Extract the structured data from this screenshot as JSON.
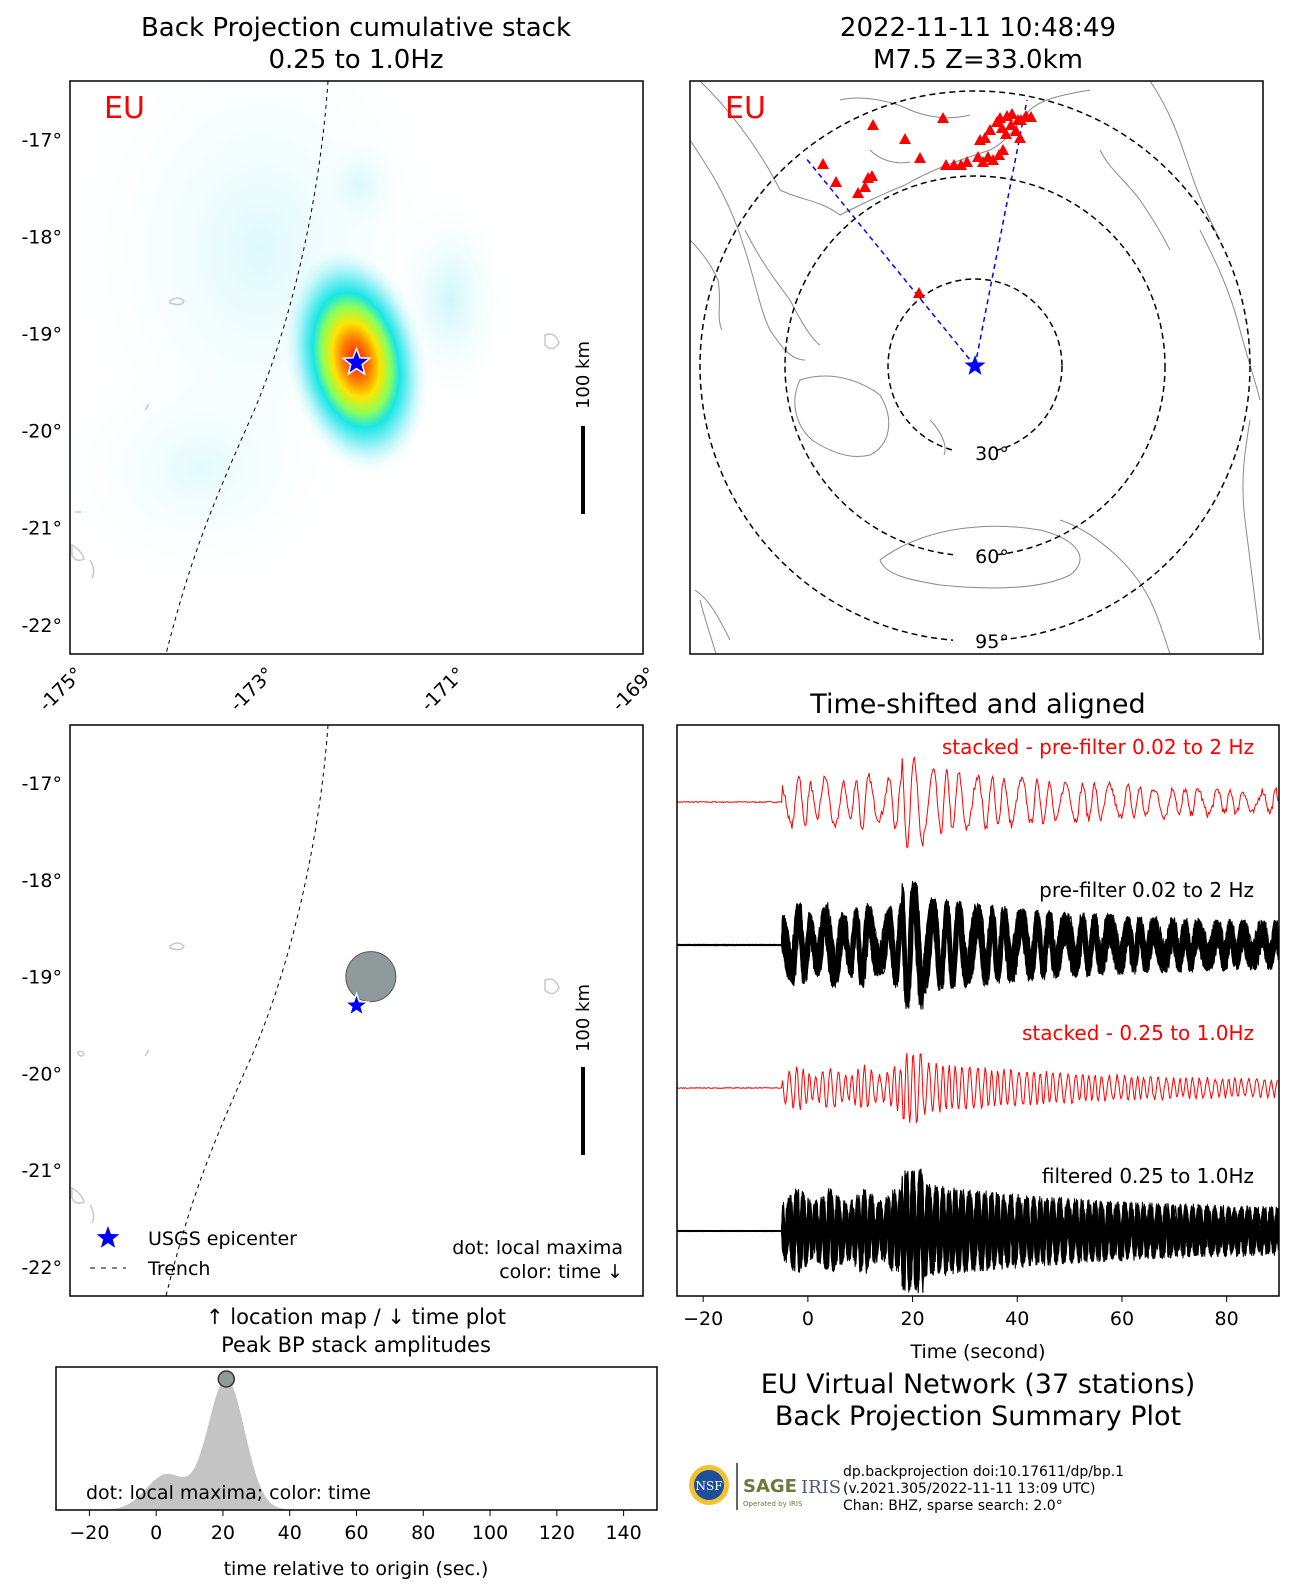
{
  "colors": {
    "stacked": "#ff0000",
    "traces": "#000000",
    "epicenter": "#0000ff",
    "stations": "#ff0000",
    "maxima_dot": "#8f9b9b",
    "peak_fill": "#c4c4c4",
    "label_red": "#ff0000"
  },
  "panels": {
    "bp_map": {
      "title_line1": "Back Projection cumulative stack",
      "title_line2": "0.25 to 1.0Hz",
      "network_tag": "EU",
      "scale_label": "100 km",
      "lat_ticks": [
        "-17°",
        "-18°",
        "-19°",
        "-20°",
        "-21°",
        "-22°"
      ],
      "lon_ticks": [
        "-175°",
        "-173°",
        "-171°",
        "-169°"
      ]
    },
    "station_map": {
      "title_line1": "2022-11-11 10:48:49",
      "title_line2": "M7.5 Z=33.0km",
      "network_tag": "EU",
      "ring_labels": [
        "30°",
        "60°",
        "95°"
      ]
    },
    "location_map": {
      "scale_label": "100 km",
      "lat_ticks": [
        "-17°",
        "-18°",
        "-19°",
        "-20°",
        "-21°",
        "-22°"
      ],
      "legend_epicenter": "USGS epicenter",
      "legend_trench": "Trench",
      "note_line1": "dot: local maxima",
      "note_line2": "color: time ↓",
      "caption_line1": "↑ location map / ↓ time plot",
      "caption_line2": "Peak BP stack amplitudes"
    },
    "waveforms": {
      "title": "Time-shifted and aligned",
      "label_stacked_pre": "stacked - pre-filter 0.02 to 2 Hz",
      "label_pre": "pre-filter 0.02 to 2 Hz",
      "label_stacked_bp": "stacked - 0.25 to 1.0Hz",
      "label_bp": "filtered 0.25 to 1.0Hz",
      "xlabel": "Time (second)",
      "x_ticks": [
        "−20",
        "0",
        "20",
        "40",
        "60",
        "80"
      ]
    },
    "peak_plot": {
      "note": "dot: local maxima; color: time",
      "xlabel": "time relative to origin (sec.)",
      "x_ticks": [
        "−20",
        "0",
        "20",
        "40",
        "60",
        "80",
        "100",
        "120",
        "140"
      ]
    },
    "summary": {
      "line1": "EU Virtual Network (37 stations)",
      "line2": "Back Projection Summary Plot",
      "credit_line1": "dp.backprojection doi:10.17611/dp/bp.1",
      "credit_line2": "(v.2021.305/2022-11-11 13:09 UTC)",
      "credit_line3": "Chan: BHZ, sparse search: 2.0°",
      "logo_nsf": "NSF",
      "logo_sage": "SAGE",
      "logo_sage_sub": "Operated by IRIS",
      "logo_iris": "IRIS"
    }
  },
  "chart_data": [
    {
      "type": "heatmap",
      "title": "Back Projection cumulative stack 0.25 to 1.0Hz",
      "xlim": [
        -175.0,
        -169.0
      ],
      "ylim": [
        -22.3,
        -16.4
      ],
      "peak": {
        "lon": -172.0,
        "lat": -19.3
      },
      "epicenter": {
        "lon": -172.0,
        "lat": -19.3
      }
    },
    {
      "type": "scatter",
      "title": "2022-11-11 10:48:49 M7.5 Z=33.0km",
      "ring_distances_deg": [
        30,
        60,
        95
      ]
    },
    {
      "type": "scatter",
      "xlim": [
        -175.0,
        -169.0
      ],
      "ylim": [
        -22.3,
        -16.4
      ],
      "epicenter": {
        "lon": -172.0,
        "lat": -19.3
      },
      "local_maxima": [
        {
          "lon": -171.85,
          "lat": -19.0
        }
      ]
    },
    {
      "type": "line",
      "title": "Time-shifted and aligned",
      "xlabel": "Time (second)",
      "xlim": [
        -25,
        90
      ]
    },
    {
      "type": "area",
      "xlabel": "time relative to origin (sec.)",
      "xlim": [
        -30,
        150
      ],
      "peaks": [
        {
          "t": 3,
          "amp": 0.27
        },
        {
          "t": 21,
          "amp": 1.0
        }
      ],
      "local_maxima": [
        {
          "t": 21,
          "amp": 1.0
        }
      ]
    }
  ]
}
